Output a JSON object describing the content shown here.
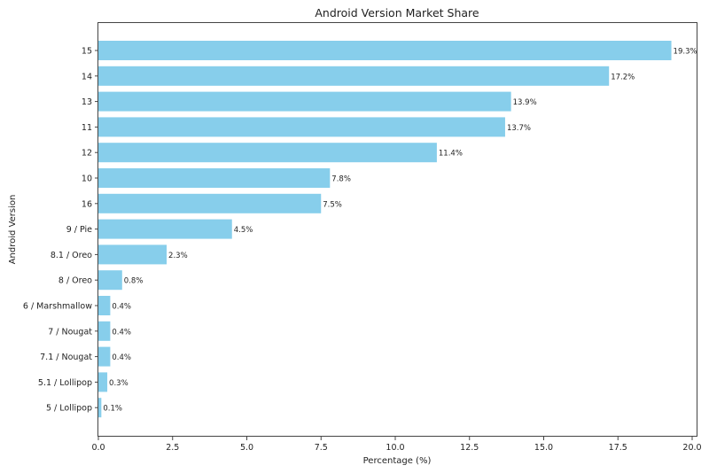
{
  "chart_data": {
    "type": "bar",
    "orientation": "horizontal",
    "title": "Android Version Market Share",
    "xlabel": "Percentage (%)",
    "ylabel": "Android Version",
    "categories": [
      "15",
      "14",
      "13",
      "11",
      "12",
      "10",
      "16",
      "9 / Pie",
      "8.1 / Oreo",
      "8 / Oreo",
      "6 / Marshmallow",
      "7 / Nougat",
      "7.1 / Nougat",
      "5.1 / Lollipop",
      "5 / Lollipop"
    ],
    "values": [
      19.3,
      17.2,
      13.9,
      13.7,
      11.4,
      7.8,
      7.5,
      4.5,
      2.3,
      0.8,
      0.4,
      0.4,
      0.4,
      0.3,
      0.1
    ],
    "data_labels": [
      "19.3%",
      "17.2%",
      "13.9%",
      "13.7%",
      "11.4%",
      "7.8%",
      "7.5%",
      "4.5%",
      "2.3%",
      "0.8%",
      "0.4%",
      "0.4%",
      "0.4%",
      "0.3%",
      "0.1%"
    ],
    "xticks": [
      "0.0",
      "2.5",
      "5.0",
      "7.5",
      "10.0",
      "12.5",
      "15.0",
      "17.5",
      "20.0"
    ],
    "xlim": [
      0,
      20.15
    ],
    "grid": false,
    "bar_color": "#87ceeb"
  }
}
